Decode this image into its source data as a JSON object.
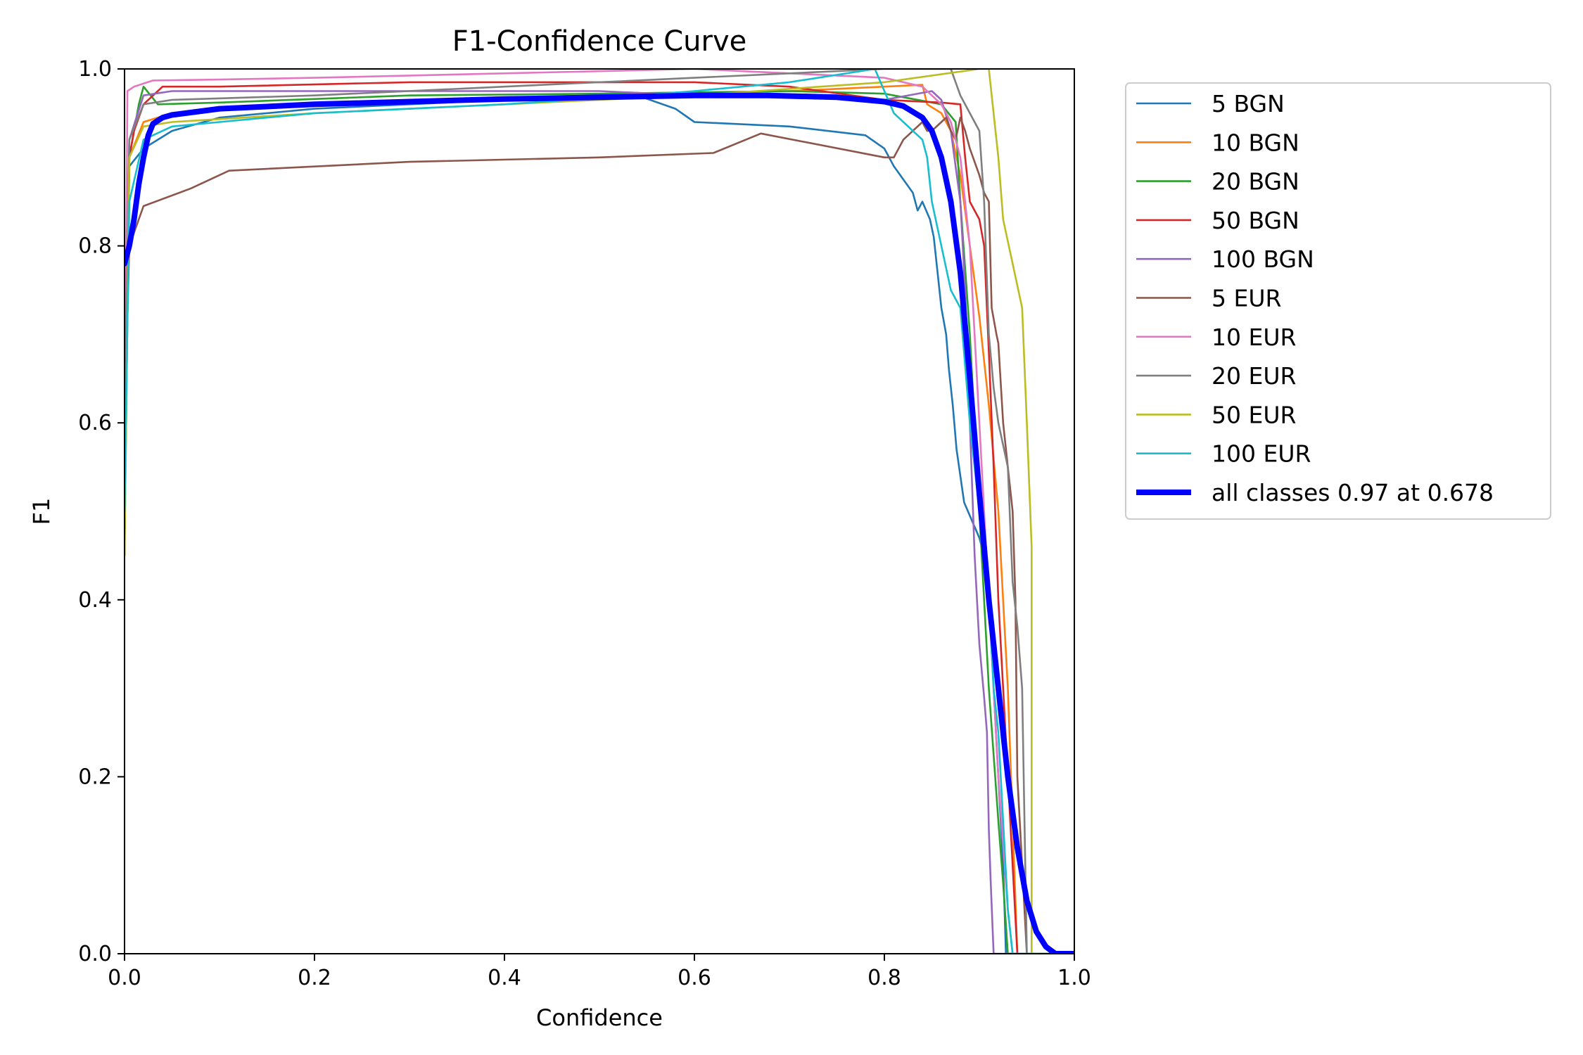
{
  "chart_data": {
    "type": "line",
    "title": "F1-Confidence Curve",
    "xlabel": "Confidence",
    "ylabel": "F1",
    "xlim": [
      0,
      1
    ],
    "ylim": [
      0,
      1
    ],
    "xticks": [
      "0.0",
      "0.2",
      "0.4",
      "0.6",
      "0.8",
      "1.0"
    ],
    "yticks": [
      "0.0",
      "0.2",
      "0.4",
      "0.6",
      "0.8",
      "1.0"
    ],
    "grid": false,
    "legend_position": "outside-top-right",
    "series": [
      {
        "name": "5 BGN",
        "color": "#1f77b4",
        "points": [
          [
            0.0,
            0.5
          ],
          [
            0.005,
            0.89
          ],
          [
            0.02,
            0.91
          ],
          [
            0.05,
            0.93
          ],
          [
            0.1,
            0.945
          ],
          [
            0.2,
            0.955
          ],
          [
            0.3,
            0.96
          ],
          [
            0.4,
            0.965
          ],
          [
            0.5,
            0.97
          ],
          [
            0.54,
            0.97
          ],
          [
            0.58,
            0.955
          ],
          [
            0.6,
            0.94
          ],
          [
            0.7,
            0.935
          ],
          [
            0.78,
            0.925
          ],
          [
            0.8,
            0.91
          ],
          [
            0.81,
            0.89
          ],
          [
            0.82,
            0.875
          ],
          [
            0.83,
            0.86
          ],
          [
            0.835,
            0.84
          ],
          [
            0.84,
            0.85
          ],
          [
            0.848,
            0.83
          ],
          [
            0.852,
            0.81
          ],
          [
            0.856,
            0.77
          ],
          [
            0.86,
            0.73
          ],
          [
            0.865,
            0.7
          ],
          [
            0.868,
            0.66
          ],
          [
            0.872,
            0.62
          ],
          [
            0.876,
            0.57
          ],
          [
            0.88,
            0.54
          ],
          [
            0.884,
            0.51
          ],
          [
            0.9,
            0.47
          ],
          [
            0.905,
            0.45
          ],
          [
            0.91,
            0.42
          ],
          [
            0.915,
            0.3
          ],
          [
            0.92,
            0.2
          ],
          [
            0.925,
            0.1
          ],
          [
            0.928,
            0.0
          ],
          [
            1.0,
            0.0
          ]
        ]
      },
      {
        "name": "10 BGN",
        "color": "#ff7f0e",
        "points": [
          [
            0.0,
            0.5
          ],
          [
            0.005,
            0.9
          ],
          [
            0.02,
            0.94
          ],
          [
            0.05,
            0.95
          ],
          [
            0.1,
            0.955
          ],
          [
            0.3,
            0.965
          ],
          [
            0.5,
            0.97
          ],
          [
            0.7,
            0.975
          ],
          [
            0.8,
            0.98
          ],
          [
            0.84,
            0.982
          ],
          [
            0.845,
            0.96
          ],
          [
            0.86,
            0.95
          ],
          [
            0.87,
            0.93
          ],
          [
            0.88,
            0.88
          ],
          [
            0.89,
            0.8
          ],
          [
            0.9,
            0.72
          ],
          [
            0.91,
            0.62
          ],
          [
            0.92,
            0.5
          ],
          [
            0.93,
            0.3
          ],
          [
            0.935,
            0.15
          ],
          [
            0.94,
            0.0
          ],
          [
            1.0,
            0.0
          ]
        ]
      },
      {
        "name": "20 BGN",
        "color": "#2ca02c",
        "points": [
          [
            0.0,
            0.45
          ],
          [
            0.005,
            0.9
          ],
          [
            0.015,
            0.96
          ],
          [
            0.02,
            0.98
          ],
          [
            0.035,
            0.96
          ],
          [
            0.1,
            0.962
          ],
          [
            0.3,
            0.97
          ],
          [
            0.5,
            0.972
          ],
          [
            0.7,
            0.975
          ],
          [
            0.8,
            0.972
          ],
          [
            0.86,
            0.96
          ],
          [
            0.875,
            0.94
          ],
          [
            0.88,
            0.85
          ],
          [
            0.89,
            0.7
          ],
          [
            0.9,
            0.5
          ],
          [
            0.91,
            0.3
          ],
          [
            0.92,
            0.15
          ],
          [
            0.925,
            0.08
          ],
          [
            0.93,
            0.0
          ],
          [
            1.0,
            0.0
          ]
        ]
      },
      {
        "name": "50 BGN",
        "color": "#d62728",
        "points": [
          [
            0.0,
            0.6
          ],
          [
            0.005,
            0.9
          ],
          [
            0.01,
            0.93
          ],
          [
            0.02,
            0.96
          ],
          [
            0.04,
            0.98
          ],
          [
            0.1,
            0.98
          ],
          [
            0.3,
            0.985
          ],
          [
            0.5,
            0.985
          ],
          [
            0.6,
            0.985
          ],
          [
            0.7,
            0.98
          ],
          [
            0.8,
            0.965
          ],
          [
            0.86,
            0.962
          ],
          [
            0.88,
            0.96
          ],
          [
            0.885,
            0.9
          ],
          [
            0.89,
            0.85
          ],
          [
            0.9,
            0.83
          ],
          [
            0.905,
            0.8
          ],
          [
            0.91,
            0.68
          ],
          [
            0.915,
            0.55
          ],
          [
            0.92,
            0.4
          ],
          [
            0.925,
            0.3
          ],
          [
            0.93,
            0.2
          ],
          [
            0.935,
            0.1
          ],
          [
            0.94,
            0.0
          ],
          [
            1.0,
            0.0
          ]
        ]
      },
      {
        "name": "100 BGN",
        "color": "#9467bd",
        "points": [
          [
            0.0,
            0.6
          ],
          [
            0.005,
            0.92
          ],
          [
            0.02,
            0.97
          ],
          [
            0.05,
            0.975
          ],
          [
            0.3,
            0.975
          ],
          [
            0.5,
            0.975
          ],
          [
            0.6,
            0.97
          ],
          [
            0.7,
            0.968
          ],
          [
            0.8,
            0.965
          ],
          [
            0.85,
            0.975
          ],
          [
            0.86,
            0.965
          ],
          [
            0.87,
            0.93
          ],
          [
            0.88,
            0.85
          ],
          [
            0.885,
            0.75
          ],
          [
            0.89,
            0.6
          ],
          [
            0.895,
            0.45
          ],
          [
            0.9,
            0.35
          ],
          [
            0.905,
            0.29
          ],
          [
            0.908,
            0.25
          ],
          [
            0.91,
            0.14
          ],
          [
            0.912,
            0.08
          ],
          [
            0.915,
            0.0
          ],
          [
            1.0,
            0.0
          ]
        ]
      },
      {
        "name": "5 EUR",
        "color": "#8c564b",
        "points": [
          [
            0.0,
            0.6
          ],
          [
            0.005,
            0.8
          ],
          [
            0.02,
            0.845
          ],
          [
            0.07,
            0.865
          ],
          [
            0.11,
            0.885
          ],
          [
            0.3,
            0.895
          ],
          [
            0.5,
            0.9
          ],
          [
            0.62,
            0.905
          ],
          [
            0.67,
            0.927
          ],
          [
            0.8,
            0.9
          ],
          [
            0.81,
            0.9
          ],
          [
            0.82,
            0.92
          ],
          [
            0.83,
            0.93
          ],
          [
            0.84,
            0.94
          ],
          [
            0.845,
            0.93
          ],
          [
            0.85,
            0.93
          ],
          [
            0.86,
            0.94
          ],
          [
            0.865,
            0.945
          ],
          [
            0.87,
            0.93
          ],
          [
            0.875,
            0.92
          ],
          [
            0.88,
            0.945
          ],
          [
            0.885,
            0.93
          ],
          [
            0.89,
            0.91
          ],
          [
            0.9,
            0.88
          ],
          [
            0.905,
            0.86
          ],
          [
            0.91,
            0.85
          ],
          [
            0.913,
            0.73
          ],
          [
            0.918,
            0.7
          ],
          [
            0.92,
            0.69
          ],
          [
            0.925,
            0.6
          ],
          [
            0.93,
            0.55
          ],
          [
            0.935,
            0.5
          ],
          [
            0.938,
            0.4
          ],
          [
            0.94,
            0.2
          ],
          [
            0.945,
            0.1
          ],
          [
            0.95,
            0.0
          ],
          [
            1.0,
            0.0
          ]
        ]
      },
      {
        "name": "10 EUR",
        "color": "#e377c2",
        "points": [
          [
            0.0,
            0.5
          ],
          [
            0.003,
            0.975
          ],
          [
            0.01,
            0.98
          ],
          [
            0.03,
            0.987
          ],
          [
            0.1,
            0.988
          ],
          [
            0.2,
            0.99
          ],
          [
            0.4,
            0.995
          ],
          [
            0.6,
            1.0
          ],
          [
            0.8,
            0.99
          ],
          [
            0.82,
            0.985
          ],
          [
            0.84,
            0.98
          ],
          [
            0.86,
            0.96
          ],
          [
            0.87,
            0.94
          ],
          [
            0.88,
            0.9
          ],
          [
            0.89,
            0.8
          ],
          [
            0.9,
            0.6
          ],
          [
            0.91,
            0.4
          ],
          [
            0.92,
            0.2
          ],
          [
            0.93,
            0.05
          ],
          [
            0.935,
            0.0
          ],
          [
            1.0,
            0.0
          ]
        ]
      },
      {
        "name": "20 EUR",
        "color": "#7f7f7f",
        "points": [
          [
            0.0,
            0.6
          ],
          [
            0.005,
            0.92
          ],
          [
            0.02,
            0.96
          ],
          [
            0.05,
            0.965
          ],
          [
            0.2,
            0.97
          ],
          [
            0.4,
            0.98
          ],
          [
            0.6,
            0.99
          ],
          [
            0.8,
            1.0
          ],
          [
            0.87,
            1.0
          ],
          [
            0.88,
            0.97
          ],
          [
            0.89,
            0.95
          ],
          [
            0.9,
            0.93
          ],
          [
            0.905,
            0.85
          ],
          [
            0.91,
            0.7
          ],
          [
            0.915,
            0.64
          ],
          [
            0.92,
            0.6
          ],
          [
            0.93,
            0.55
          ],
          [
            0.935,
            0.42
          ],
          [
            0.94,
            0.37
          ],
          [
            0.945,
            0.3
          ],
          [
            0.95,
            0.0
          ],
          [
            1.0,
            0.0
          ]
        ]
      },
      {
        "name": "50 EUR",
        "color": "#bcbd22",
        "points": [
          [
            0.0,
            0.45
          ],
          [
            0.005,
            0.9
          ],
          [
            0.02,
            0.935
          ],
          [
            0.05,
            0.94
          ],
          [
            0.2,
            0.95
          ],
          [
            0.4,
            0.96
          ],
          [
            0.6,
            0.97
          ],
          [
            0.8,
            0.985
          ],
          [
            0.9,
            1.0
          ],
          [
            0.91,
            1.0
          ],
          [
            0.92,
            0.9
          ],
          [
            0.925,
            0.83
          ],
          [
            0.935,
            0.78
          ],
          [
            0.945,
            0.73
          ],
          [
            0.95,
            0.6
          ],
          [
            0.955,
            0.46
          ],
          [
            0.955,
            0.0
          ],
          [
            1.0,
            0.0
          ]
        ]
      },
      {
        "name": "100 EUR",
        "color": "#17becf",
        "points": [
          [
            0.0,
            0.5
          ],
          [
            0.005,
            0.85
          ],
          [
            0.02,
            0.92
          ],
          [
            0.05,
            0.935
          ],
          [
            0.1,
            0.94
          ],
          [
            0.2,
            0.95
          ],
          [
            0.4,
            0.96
          ],
          [
            0.54,
            0.97
          ],
          [
            0.6,
            0.975
          ],
          [
            0.7,
            0.985
          ],
          [
            0.79,
            1.0
          ],
          [
            0.81,
            0.95
          ],
          [
            0.83,
            0.93
          ],
          [
            0.84,
            0.92
          ],
          [
            0.845,
            0.9
          ],
          [
            0.85,
            0.85
          ],
          [
            0.86,
            0.8
          ],
          [
            0.87,
            0.75
          ],
          [
            0.88,
            0.73
          ],
          [
            0.89,
            0.6
          ],
          [
            0.9,
            0.5
          ],
          [
            0.91,
            0.4
          ],
          [
            0.915,
            0.3
          ],
          [
            0.92,
            0.25
          ],
          [
            0.925,
            0.15
          ],
          [
            0.93,
            0.05
          ],
          [
            0.935,
            0.0
          ],
          [
            1.0,
            0.0
          ]
        ]
      },
      {
        "name": "all classes 0.97 at 0.678",
        "color": "#0000ff",
        "bold": true,
        "points": [
          [
            0.0,
            0.78
          ],
          [
            0.005,
            0.8
          ],
          [
            0.01,
            0.83
          ],
          [
            0.015,
            0.87
          ],
          [
            0.02,
            0.9
          ],
          [
            0.025,
            0.925
          ],
          [
            0.03,
            0.938
          ],
          [
            0.04,
            0.945
          ],
          [
            0.05,
            0.948
          ],
          [
            0.1,
            0.955
          ],
          [
            0.2,
            0.96
          ],
          [
            0.3,
            0.963
          ],
          [
            0.4,
            0.966
          ],
          [
            0.5,
            0.968
          ],
          [
            0.6,
            0.97
          ],
          [
            0.678,
            0.97
          ],
          [
            0.75,
            0.968
          ],
          [
            0.8,
            0.963
          ],
          [
            0.82,
            0.958
          ],
          [
            0.84,
            0.945
          ],
          [
            0.85,
            0.93
          ],
          [
            0.86,
            0.9
          ],
          [
            0.87,
            0.85
          ],
          [
            0.88,
            0.77
          ],
          [
            0.89,
            0.65
          ],
          [
            0.9,
            0.52
          ],
          [
            0.91,
            0.4
          ],
          [
            0.92,
            0.3
          ],
          [
            0.93,
            0.2
          ],
          [
            0.94,
            0.12
          ],
          [
            0.95,
            0.06
          ],
          [
            0.96,
            0.025
          ],
          [
            0.97,
            0.008
          ],
          [
            0.98,
            0.0
          ],
          [
            1.0,
            0.0
          ]
        ]
      }
    ]
  }
}
